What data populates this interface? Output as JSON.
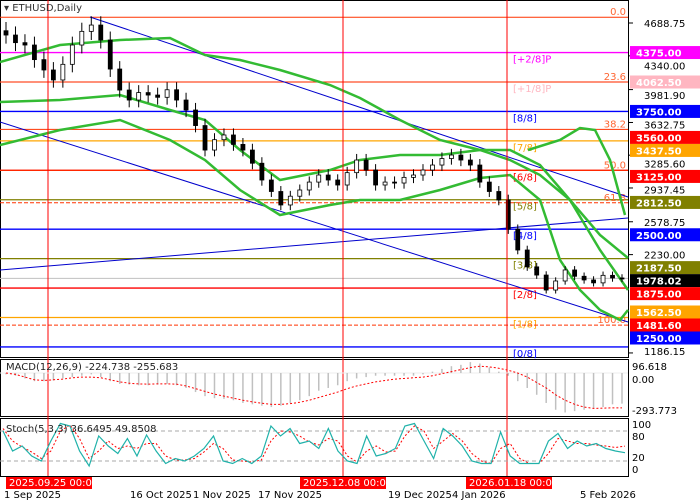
{
  "chart_data": {
    "type": "candlestick",
    "title": "ETHUSD,Daily",
    "symbol": "ETHUSD",
    "timeframe": "Daily",
    "ylim": [
      1186.15,
      4750
    ],
    "price_ticks": [
      "4688.75",
      "4340.00",
      "3981.90",
      "3632.75",
      "3285.60",
      "2937.45",
      "2578.75",
      "2230.00",
      "1186.15"
    ],
    "current_price": "1978.02",
    "closes": [
      4561,
      4480,
      4455,
      4300,
      4190,
      4084,
      4250,
      4455,
      4600,
      4667,
      4508,
      4200,
      3977,
      3871,
      3950,
      3924,
      3900,
      3980,
      3871,
      3765,
      3600,
      3340,
      3450,
      3500,
      3400,
      3340,
      3200,
      3022,
      2900,
      2757,
      2850,
      2916,
      3000,
      3075,
      3022,
      2969,
      3100,
      3234,
      3128,
      2969,
      3000,
      2990,
      3050,
      3075,
      3128,
      3181,
      3250,
      3287,
      3234,
      3181,
      3000,
      2900,
      2810,
      2500,
      2279,
      2100,
      2013,
      1854,
      1950,
      2067,
      2000,
      1961,
      1930,
      2010,
      1982,
      1978.02
    ],
    "levels": [
      {
        "price": 4375.0,
        "label": "[+2/8]P",
        "axis": "4375.00",
        "color": "#ff00ff"
      },
      {
        "price": 4062.5,
        "label": "[+1/8]P",
        "axis": "4062.50",
        "color": "#ffb6c1"
      },
      {
        "price": 3750.0,
        "label": "[8/8]",
        "axis": "3750.00",
        "color": "#0000ff"
      },
      {
        "price": 3437.5,
        "label": "[7/8]",
        "axis": "3437.50",
        "color": "#ffa500"
      },
      {
        "price": 3125.0,
        "label": "[6/8]",
        "axis": "3125.00",
        "color": "#ff0000"
      },
      {
        "price": 2812.5,
        "label": "[5/8]",
        "axis": "2812.50",
        "color": "#808000"
      },
      {
        "price": 2500.0,
        "label": "[4/8]",
        "axis": "2500.00",
        "color": "#0000ff"
      },
      {
        "price": 2187.5,
        "label": "[3/8]",
        "axis": "2187.50",
        "color": "#808000"
      },
      {
        "price": 1875.0,
        "label": "[2/8]",
        "axis": "1875.00",
        "color": "#ff0000"
      },
      {
        "price": 1562.5,
        "label": "[1/8]",
        "axis": "1562.50",
        "color": "#ffa500"
      },
      {
        "price": 1250.0,
        "label": "[0/8]",
        "axis": "1250.00",
        "color": "#0000ff"
      }
    ],
    "fibo": [
      {
        "price": 4750,
        "label": "0.0"
      },
      {
        "price": 4062.5,
        "label": "23.6"
      },
      {
        "price": 3560,
        "label": "38.2",
        "axis": "3560.00"
      },
      {
        "price": 3125,
        "label": "50.0"
      },
      {
        "price": 2780,
        "label": "61.8"
      },
      {
        "price": 1481.6,
        "label": "100.0",
        "axis": "1481.60"
      }
    ],
    "macd": {
      "label": "MACD(12,26,9) -224.738 -255.683",
      "ylim": [
        -293.773,
        96.618
      ],
      "ticks": [
        "96.618",
        "0.00",
        "-293.773"
      ],
      "histogram": [
        -10,
        -20,
        -40,
        -60,
        -60,
        -55,
        -40,
        -30,
        -20,
        -10,
        -30,
        -60,
        -80,
        -85,
        -90,
        -90,
        -85,
        -80,
        -90,
        -110,
        -140,
        -170,
        -185,
        -190,
        -200,
        -220,
        -230,
        -240,
        -250,
        -240,
        -220,
        -200,
        -170,
        -130,
        -110,
        -90,
        -60,
        -40,
        -30,
        -20,
        -20,
        -20,
        -20,
        -20,
        -10,
        10,
        30,
        50,
        60,
        80,
        70,
        40,
        10,
        -20,
        -60,
        -110,
        -160,
        -220,
        -270,
        -290,
        -280,
        -270,
        -260,
        -250,
        -230,
        -225
      ],
      "signal": [
        0,
        -10,
        -30,
        -50,
        -55,
        -50,
        -45,
        -35,
        -30,
        -30,
        -35,
        -50,
        -65,
        -75,
        -80,
        -82,
        -80,
        -80,
        -82,
        -95,
        -115,
        -135,
        -155,
        -170,
        -185,
        -200,
        -212,
        -222,
        -230,
        -230,
        -225,
        -215,
        -200,
        -180,
        -160,
        -140,
        -115,
        -95,
        -80,
        -65,
        -55,
        -45,
        -40,
        -35,
        -30,
        -20,
        -5,
        10,
        25,
        40,
        50,
        45,
        35,
        20,
        0,
        -30,
        -70,
        -110,
        -160,
        -200,
        -230,
        -250,
        -260,
        -258,
        -256,
        -255.683
      ]
    },
    "stoch": {
      "label": "Stoch(5,3,3) 36.6495 49.8508",
      "ylim": [
        0,
        100
      ],
      "ticks": [
        "100",
        "80",
        "20",
        "0"
      ],
      "main": [
        80,
        40,
        50,
        30,
        20,
        60,
        95,
        90,
        40,
        10,
        70,
        50,
        35,
        65,
        30,
        72,
        40,
        15,
        25,
        20,
        30,
        45,
        70,
        20,
        15,
        25,
        15,
        30,
        90,
        70,
        85,
        55,
        60,
        45,
        85,
        40,
        20,
        15,
        70,
        30,
        35,
        45,
        90,
        95,
        60,
        25,
        85,
        70,
        50,
        20,
        15,
        15,
        78,
        30,
        15,
        15,
        15,
        60,
        75,
        45,
        60,
        50,
        55,
        45,
        40,
        36.6495
      ],
      "signal": [
        85,
        60,
        48,
        38,
        25,
        40,
        80,
        92,
        65,
        25,
        40,
        60,
        45,
        50,
        45,
        55,
        55,
        30,
        22,
        22,
        25,
        38,
        55,
        45,
        22,
        20,
        18,
        22,
        60,
        80,
        78,
        70,
        58,
        52,
        65,
        60,
        30,
        18,
        40,
        50,
        38,
        40,
        70,
        90,
        80,
        45,
        60,
        75,
        60,
        35,
        20,
        15,
        45,
        55,
        25,
        15,
        15,
        35,
        65,
        60,
        55,
        55,
        52,
        50,
        47,
        49.8508
      ]
    },
    "time_labels": [
      "1 Sep 2025",
      "16 Oct 2025",
      "1 Nov 2025",
      "17 Nov 2025",
      "19 Dec 2025",
      "4 Jan 2026",
      "5 Feb 2026"
    ],
    "crosshair_dates": [
      "2025.09.25 00:00",
      "2025.12.08 00:00",
      "2026.01.18 00:00"
    ],
    "colors": {
      "bull": "#ffffff",
      "bear": "#000000",
      "bands": "#33bb33",
      "trend": "#0000cc",
      "crosshair": "#ff0000",
      "macd_hist": "#c0c0c0",
      "macd_signal": "#ff0000",
      "stoch_main": "#20b2aa",
      "stoch_signal": "#ff0000"
    }
  }
}
